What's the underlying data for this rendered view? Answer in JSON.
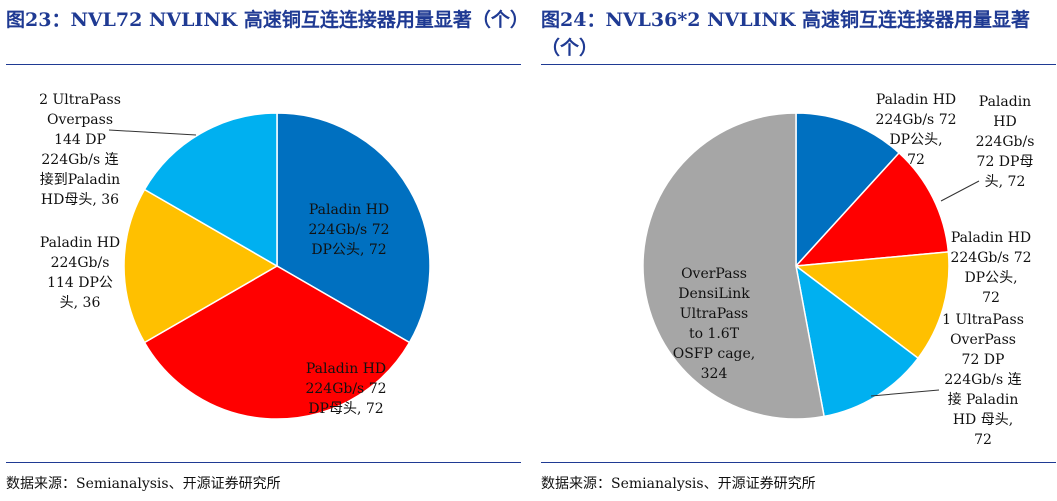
{
  "left": {
    "title": "图23：NVL72 NVLINK 高速铜互连连接器用量显著（个）",
    "source": "数据来源：Semianalysis、开源证券研究所"
  },
  "right": {
    "title": "图24：NVL36*2 NVLINK 高速铜互连连接器用量显著（个）",
    "source": "数据来源：Semianalysis、开源证券研究所"
  },
  "chart_data": [
    {
      "type": "pie",
      "slices": [
        {
          "label_lines": [
            "Paladin HD",
            "224Gb/s 72",
            "DP公头, 72"
          ],
          "value": 72,
          "color": "#0070c0"
        },
        {
          "label_lines": [
            "Paladin HD",
            "224Gb/s 72",
            "DP母头, 72"
          ],
          "value": 72,
          "color": "#ff0000"
        },
        {
          "label_lines": [
            "Paladin HD",
            "224Gb/s",
            "114 DP公",
            "头, 36"
          ],
          "value": 36,
          "color": "#ffc000"
        },
        {
          "label_lines": [
            "2 UltraPass",
            "Overpass",
            "144 DP",
            "224Gb/s 连",
            "接到Paladin",
            "HD母头, 36"
          ],
          "value": 36,
          "color": "#00b0f0"
        }
      ]
    },
    {
      "type": "pie",
      "slices": [
        {
          "label_lines": [
            "Paladin HD",
            "224Gb/s 72",
            "DP公头,",
            "72"
          ],
          "value": 72,
          "color": "#0070c0"
        },
        {
          "label_lines": [
            "Paladin",
            "HD",
            "224Gb/s",
            "72 DP母",
            "头, 72"
          ],
          "value": 72,
          "color": "#ff0000"
        },
        {
          "label_lines": [
            "Paladin HD",
            "224Gb/s 72",
            "DP公头,",
            "72"
          ],
          "value": 72,
          "color": "#ffc000"
        },
        {
          "label_lines": [
            "1 UltraPass",
            "OverPass",
            "72 DP",
            "224Gb/s 连",
            "接 Paladin",
            "HD 母头,",
            "72"
          ],
          "value": 72,
          "color": "#00b0f0"
        },
        {
          "label_lines": [
            "OverPass",
            "DensiLink",
            "UltraPass",
            "to 1.6T",
            "OSFP cage,",
            "324"
          ],
          "value": 324,
          "color": "#a6a6a6"
        }
      ]
    }
  ]
}
